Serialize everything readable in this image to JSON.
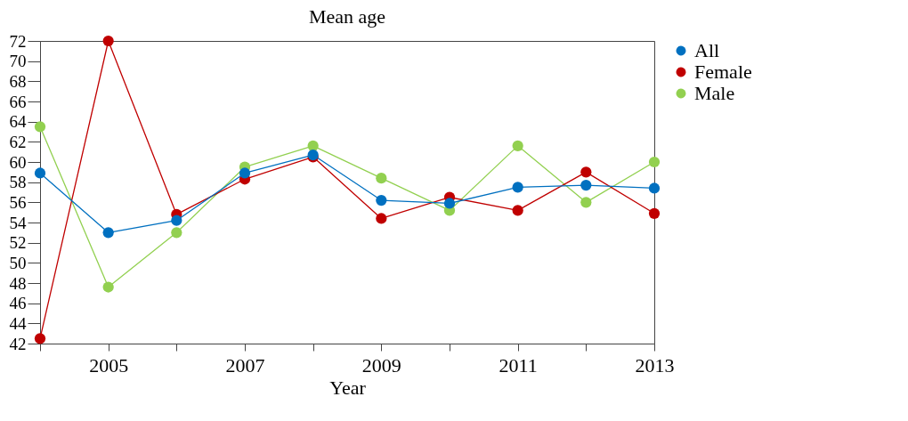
{
  "chart_data": {
    "type": "line",
    "title": "Mean age",
    "xlabel": "Year",
    "x": [
      2004,
      2005,
      2006,
      2007,
      2008,
      2009,
      2010,
      2011,
      2012,
      2013
    ],
    "series": [
      {
        "name": "All",
        "color": "#0070c0",
        "values": [
          58.9,
          53.0,
          54.2,
          58.9,
          60.7,
          56.2,
          55.9,
          57.5,
          57.7,
          57.4
        ]
      },
      {
        "name": "Female",
        "color": "#c00000",
        "values": [
          42.5,
          72.0,
          54.8,
          58.3,
          60.5,
          54.4,
          56.5,
          55.2,
          59.0,
          54.9
        ]
      },
      {
        "name": "Male",
        "color": "#92d050",
        "values": [
          63.5,
          47.6,
          53.0,
          59.5,
          61.6,
          58.4,
          55.2,
          61.6,
          56.0,
          60.0
        ]
      }
    ],
    "xlim": [
      2004,
      2013
    ],
    "xticks": [
      {
        "value": 2004,
        "label": null
      },
      2005,
      {
        "value": 2006,
        "label": null
      },
      2007,
      {
        "value": 2008,
        "label": null
      },
      2009,
      {
        "value": 2010,
        "label": null
      },
      2011,
      {
        "value": 2012,
        "label": null
      },
      2013
    ],
    "ylim": [
      42,
      72
    ],
    "yticks": [
      42,
      44,
      46,
      48,
      50,
      52,
      54,
      56,
      58,
      60,
      62,
      64,
      66,
      68,
      70,
      72
    ],
    "grid": false,
    "legend": "right",
    "marker": "circle",
    "line_style": "solid"
  }
}
